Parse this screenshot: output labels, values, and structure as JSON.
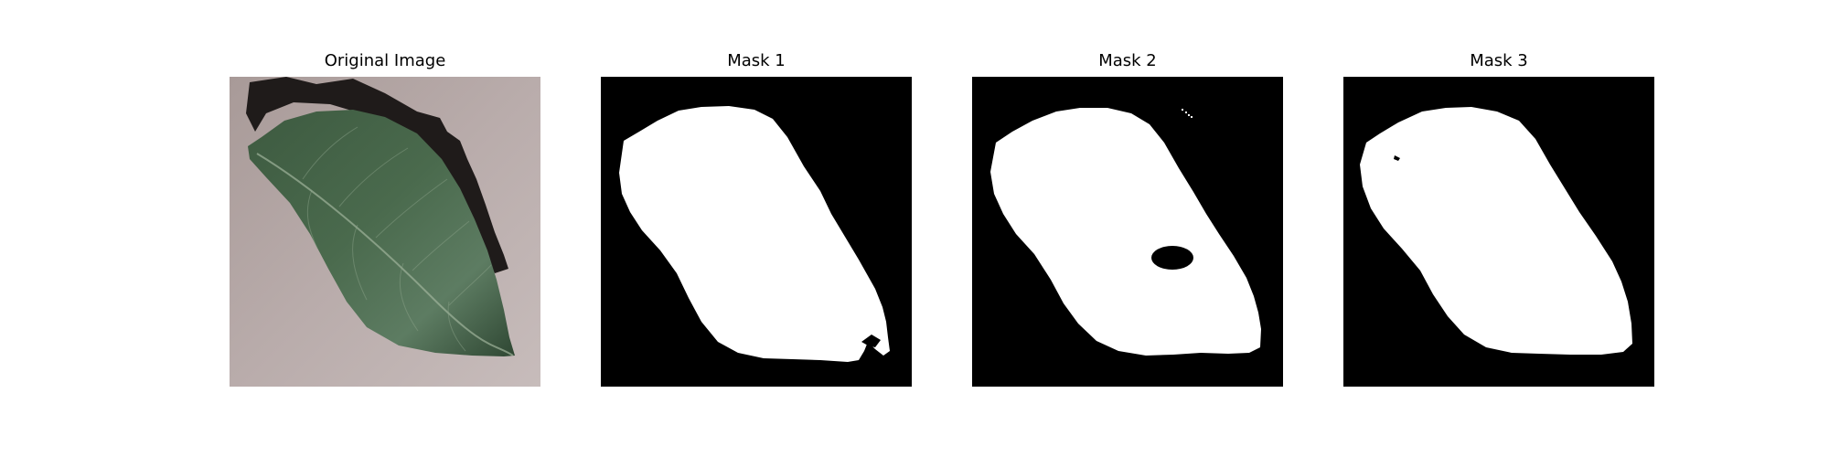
{
  "panels": [
    {
      "title": "Original Image",
      "kind": "photo"
    },
    {
      "title": "Mask 1",
      "kind": "mask"
    },
    {
      "title": "Mask 2",
      "kind": "mask"
    },
    {
      "title": "Mask 3",
      "kind": "mask"
    }
  ],
  "colors": {
    "background": "#ffffff",
    "mask_foreground": "#ffffff",
    "mask_background": "#000000",
    "leaf_dark": "#2f4a34",
    "leaf_light": "#5f7e63",
    "surface": "#b7a9a8",
    "shadow": "#1e1a19"
  }
}
